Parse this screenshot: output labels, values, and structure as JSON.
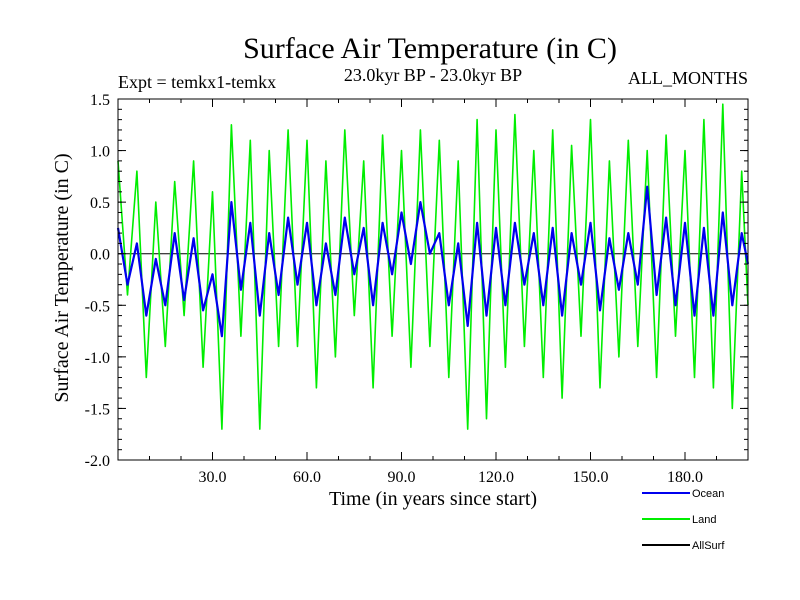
{
  "chart_data": {
    "type": "line",
    "title": "Surface Air Temperature (in C)",
    "subtitle_left": "Expt = temkx1-temkx",
    "subtitle_center": "23.0kyr BP - 23.0kyr BP",
    "subtitle_right": "ALL_MONTHS",
    "xlabel": "Time (in years since start)",
    "ylabel": "Surface Air Temperature (in C)",
    "xlim": [
      0,
      200
    ],
    "ylim": [
      -2.0,
      1.5
    ],
    "x_ticks": [
      30,
      60,
      90,
      120,
      150,
      180
    ],
    "x_tick_labels": [
      "30.0",
      "60.0",
      "90.0",
      "120.0",
      "150.0",
      "180.0"
    ],
    "y_ticks": [
      1.5,
      1.0,
      0.5,
      0.0,
      -0.5,
      -1.0,
      -1.5,
      -2.0
    ],
    "y_tick_labels": [
      "1.5",
      "1.0",
      "0.5",
      "0.0",
      "-0.5",
      "-1.0",
      "-1.5",
      "-2.0"
    ],
    "zero_line": 0.0,
    "series": [
      {
        "name": "Land",
        "color": "#00ee00",
        "x": [
          0,
          3,
          6,
          9,
          12,
          15,
          18,
          21,
          24,
          27,
          30,
          33,
          36,
          39,
          42,
          45,
          48,
          51,
          54,
          57,
          60,
          63,
          66,
          69,
          72,
          75,
          78,
          81,
          84,
          87,
          90,
          93,
          96,
          99,
          102,
          105,
          108,
          111,
          114,
          117,
          120,
          123,
          126,
          129,
          132,
          135,
          138,
          141,
          144,
          147,
          150,
          153,
          156,
          159,
          162,
          165,
          168,
          171,
          174,
          177,
          180,
          183,
          186,
          189,
          192,
          195,
          198,
          200
        ],
        "values": [
          0.9,
          -0.4,
          0.8,
          -1.2,
          0.5,
          -0.9,
          0.7,
          -0.6,
          0.9,
          -1.1,
          0.6,
          -1.7,
          1.25,
          -0.8,
          1.1,
          -1.7,
          1.0,
          -0.9,
          1.2,
          -0.9,
          1.1,
          -1.3,
          0.9,
          -1.0,
          1.2,
          -0.6,
          0.9,
          -1.3,
          1.15,
          -0.8,
          1.0,
          -1.1,
          1.2,
          -0.9,
          1.1,
          -1.2,
          0.9,
          -1.7,
          1.3,
          -1.6,
          1.2,
          -1.1,
          1.35,
          -0.9,
          1.0,
          -1.2,
          1.2,
          -1.4,
          1.05,
          -0.8,
          1.3,
          -1.3,
          0.9,
          -1.0,
          1.1,
          -0.9,
          1.0,
          -1.2,
          1.15,
          -0.8,
          1.0,
          -1.2,
          1.3,
          -1.3,
          1.45,
          -1.5,
          0.8,
          -0.5
        ]
      },
      {
        "name": "Ocean",
        "color": "#0000ee",
        "x": [
          0,
          3,
          6,
          9,
          12,
          15,
          18,
          21,
          24,
          27,
          30,
          33,
          36,
          39,
          42,
          45,
          48,
          51,
          54,
          57,
          60,
          63,
          66,
          69,
          72,
          75,
          78,
          81,
          84,
          87,
          90,
          93,
          96,
          99,
          102,
          105,
          108,
          111,
          114,
          117,
          120,
          123,
          126,
          129,
          132,
          135,
          138,
          141,
          144,
          147,
          150,
          153,
          156,
          159,
          162,
          165,
          168,
          171,
          174,
          177,
          180,
          183,
          186,
          189,
          192,
          195,
          198,
          200
        ],
        "values": [
          0.25,
          -0.3,
          0.1,
          -0.6,
          -0.05,
          -0.5,
          0.2,
          -0.45,
          0.15,
          -0.55,
          -0.2,
          -0.8,
          0.5,
          -0.35,
          0.3,
          -0.6,
          0.2,
          -0.4,
          0.35,
          -0.3,
          0.3,
          -0.5,
          0.1,
          -0.4,
          0.35,
          -0.2,
          0.25,
          -0.5,
          0.3,
          -0.2,
          0.4,
          -0.1,
          0.5,
          0.0,
          0.2,
          -0.5,
          0.1,
          -0.7,
          0.3,
          -0.6,
          0.25,
          -0.5,
          0.3,
          -0.3,
          0.2,
          -0.5,
          0.25,
          -0.6,
          0.2,
          -0.3,
          0.3,
          -0.55,
          0.15,
          -0.35,
          0.2,
          -0.3,
          0.65,
          -0.4,
          0.35,
          -0.5,
          0.3,
          -0.6,
          0.25,
          -0.6,
          0.4,
          -0.5,
          0.2,
          -0.1
        ]
      },
      {
        "name": "AllSurf",
        "color": "#000000",
        "x": [],
        "values": []
      }
    ],
    "legend": {
      "placement": "bottom-right",
      "entries": [
        "Ocean",
        "Land",
        "AllSurf"
      ]
    }
  }
}
